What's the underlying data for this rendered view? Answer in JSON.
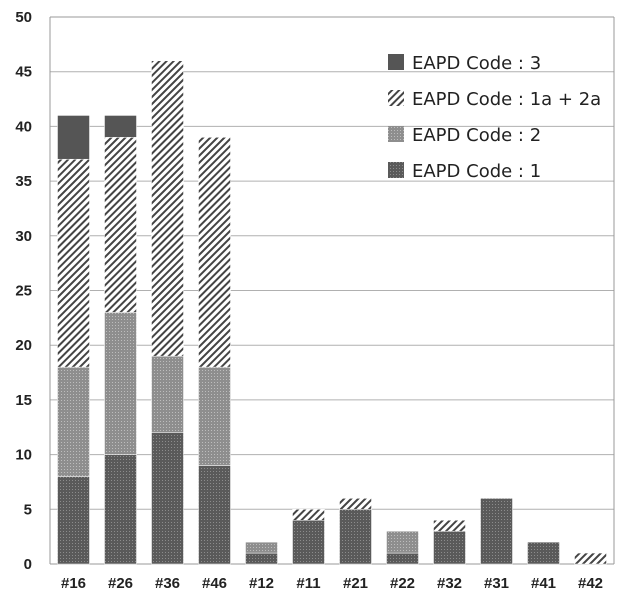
{
  "chart_data": {
    "type": "bar",
    "stacked": true,
    "categories": [
      "#16",
      "#26",
      "#36",
      "#46",
      "#12",
      "#11",
      "#21",
      "#22",
      "#32",
      "#31",
      "#41",
      "#42"
    ],
    "series": [
      {
        "name": "EAPD Code : 1",
        "pattern": "dots",
        "values": [
          8,
          10,
          12,
          9,
          1,
          4,
          5,
          1,
          3,
          6,
          2,
          0
        ]
      },
      {
        "name": "EAPD Code : 2",
        "pattern": "light-dots",
        "values": [
          10,
          13,
          7,
          9,
          1,
          0,
          0,
          2,
          0,
          0,
          0,
          0
        ]
      },
      {
        "name": "EAPD Code : 1a + 2a",
        "pattern": "diagonal-hatch",
        "values": [
          19,
          16,
          27,
          21,
          0,
          1,
          1,
          0,
          1,
          0,
          0,
          1
        ]
      },
      {
        "name": "EAPD Code : 3",
        "pattern": "solid",
        "values": [
          4,
          2,
          0,
          0,
          0,
          0,
          0,
          0,
          0,
          0,
          0,
          0
        ]
      }
    ],
    "ylim": [
      0,
      50
    ],
    "yticks": [
      0,
      5,
      10,
      15,
      20,
      25,
      30,
      35,
      40,
      45,
      50
    ],
    "grid": true,
    "legend_position": "top-right",
    "legend_order": [
      "EAPD Code : 3",
      "EAPD Code : 1a + 2a",
      "EAPD Code : 2",
      "EAPD Code : 1"
    ],
    "colors": {
      "dark": "#555555",
      "medium": "#8a8a8a",
      "hatch": "#444444",
      "grid": "#b0b0b0"
    }
  }
}
